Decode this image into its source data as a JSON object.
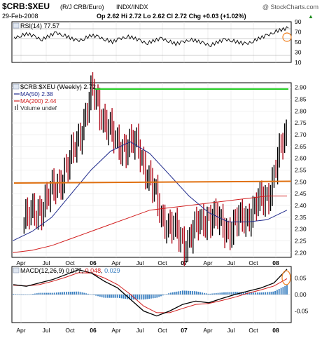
{
  "header": {
    "symbol": "$CRB:$XEU",
    "description": "(R/J CRB/Euro)",
    "exchange": "INDX/INDX",
    "watermark": "@ StockCharts.com",
    "date": "29-Feb-2008",
    "quote": "Op 2.62  Hi 2.72  Lo 2.62  Cl 2.72  Chg +0.03 (+1.02%)",
    "quote_arrow": "▲"
  },
  "rsi_panel": {
    "label": "RSI(14) 77.57",
    "ticks": [
      "90",
      "70",
      "50",
      "30",
      "10"
    ]
  },
  "price_panel": {
    "label": "$CRB:$XEU (Weekly) 2.72",
    "legend": [
      {
        "text": "MA(50) 2.38",
        "color": "#1f2a8c"
      },
      {
        "text": "MA(200) 2.44",
        "color": "#d21e1e"
      },
      {
        "text": "Volume undef",
        "color": "#888888"
      }
    ],
    "ticks": [
      "2.90",
      "2.85",
      "2.80",
      "2.75",
      "2.70",
      "2.65",
      "2.60",
      "2.55",
      "2.50",
      "2.45",
      "2.40",
      "2.35",
      "2.30",
      "2.25",
      "2.20"
    ]
  },
  "macd_panel": {
    "label_prefix": "MACD(12,26,9) ",
    "macd_value": "0.077",
    "signal_value": "0.048",
    "hist_value": "0.029",
    "ticks": [
      "0.05",
      "0.00",
      "-0.05"
    ]
  },
  "x_axis": [
    "Apr",
    "Jul",
    "Oct",
    "06",
    "Apr",
    "Jul",
    "Oct",
    "07",
    "Apr",
    "Jul",
    "Oct",
    "08"
  ],
  "colors": {
    "up_bar": "#000000",
    "down_bar": "#b01020",
    "ma50": "#1f2a8c",
    "ma200": "#d21e1e",
    "resistance_line": "#22cc22",
    "support_line": "#e07010",
    "macd_line": "#000000",
    "signal_line": "#d21e1e",
    "histogram": "#3a7fc0",
    "highlight_circle": "#f08020"
  },
  "chart_data": [
    {
      "type": "line",
      "title": "RSI(14) 77.57",
      "ylim": [
        10,
        90
      ],
      "levels": [
        70,
        30
      ],
      "last_value": 77.57,
      "series": [
        {
          "name": "RSI(14)",
          "values": [
            58,
            63,
            66,
            60,
            55,
            62,
            68,
            64,
            58,
            52,
            57,
            63,
            60,
            55,
            50,
            56,
            61,
            58,
            52,
            48,
            53,
            57,
            52,
            46,
            50,
            55,
            52,
            47,
            44,
            50,
            55,
            53,
            49,
            46,
            52,
            58,
            63,
            70,
            74,
            77.57
          ]
        }
      ]
    },
    {
      "type": "ohlc",
      "title": "$CRB:$XEU (Weekly) 2.72",
      "frequency": "weekly",
      "ylim": [
        2.18,
        2.92
      ],
      "x_range": [
        "2005-03",
        "2008-02-29"
      ],
      "key_points": [
        {
          "date": "2005-04",
          "close": 2.33
        },
        {
          "date": "2005-07",
          "close": 2.42
        },
        {
          "date": "2005-10",
          "close": 2.58
        },
        {
          "date": "2006-01",
          "close": 2.88
        },
        {
          "date": "2006-04",
          "close": 2.66
        },
        {
          "date": "2006-07",
          "close": 2.65
        },
        {
          "date": "2006-10",
          "close": 2.36
        },
        {
          "date": "2007-01",
          "close": 2.24
        },
        {
          "date": "2007-04",
          "close": 2.36
        },
        {
          "date": "2007-07",
          "close": 2.3
        },
        {
          "date": "2007-10",
          "close": 2.38
        },
        {
          "date": "2007-12",
          "close": 2.45
        },
        {
          "date": "2008-02-29",
          "close": 2.72
        }
      ],
      "last": {
        "open": 2.62,
        "high": 2.72,
        "low": 2.62,
        "close": 2.72,
        "change": 0.03,
        "change_pct": 1.02
      },
      "series": [
        {
          "name": "MA(50)",
          "last": 2.38,
          "values": [
            2.25,
            2.29,
            2.35,
            2.45,
            2.55,
            2.63,
            2.67,
            2.62,
            2.53,
            2.44,
            2.37,
            2.33,
            2.33,
            2.34,
            2.38
          ]
        },
        {
          "name": "MA(200)",
          "last": 2.44,
          "values": [
            2.2,
            2.21,
            2.23,
            2.26,
            2.29,
            2.32,
            2.35,
            2.38,
            2.39,
            2.4,
            2.41,
            2.42,
            2.43,
            2.44,
            2.44
          ]
        }
      ],
      "horizontal_lines": [
        {
          "value": 2.905,
          "color": "green"
        },
        {
          "value": 2.465,
          "color": "orange"
        }
      ]
    },
    {
      "type": "line",
      "title": "MACD(12,26,9) 0.077, 0.048, 0.029",
      "ylim": [
        -0.085,
        0.085
      ],
      "series": [
        {
          "name": "MACD(12,26,9)",
          "last": 0.077,
          "values": [
            0.03,
            0.025,
            0.035,
            0.045,
            0.06,
            0.075,
            0.065,
            0.04,
            0.02,
            -0.015,
            -0.05,
            -0.065,
            -0.05,
            -0.03,
            -0.02,
            -0.025,
            -0.012,
            0.0,
            0.01,
            0.02,
            0.035,
            0.077
          ]
        },
        {
          "name": "Signal",
          "last": 0.048,
          "values": [
            0.028,
            0.026,
            0.03,
            0.04,
            0.052,
            0.066,
            0.065,
            0.05,
            0.03,
            0.0,
            -0.035,
            -0.055,
            -0.055,
            -0.042,
            -0.03,
            -0.027,
            -0.018,
            -0.008,
            0.004,
            0.014,
            0.026,
            0.048
          ]
        },
        {
          "name": "Histogram",
          "last": 0.029
        }
      ]
    }
  ]
}
